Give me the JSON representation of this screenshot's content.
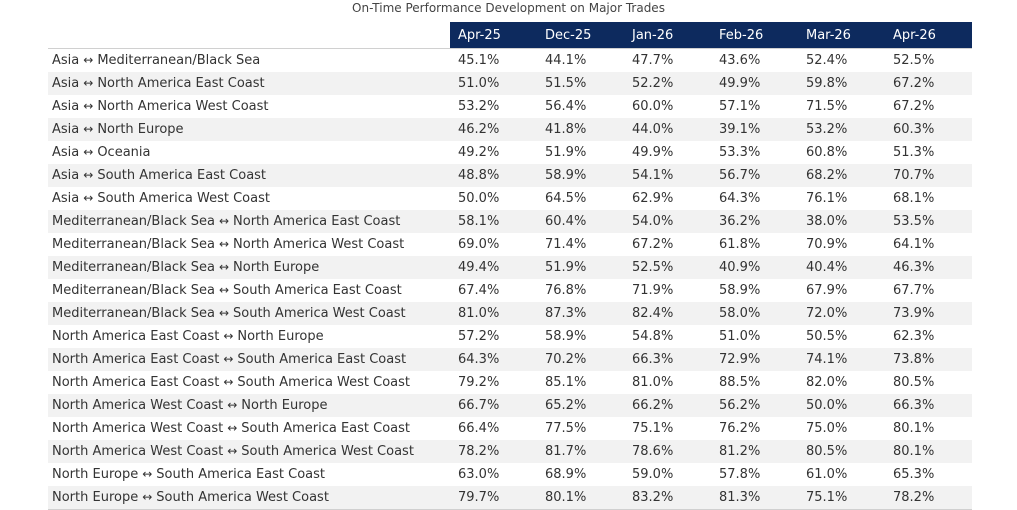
{
  "chart_data": {
    "type": "table",
    "title": "On-Time Performance Development on Major Trades",
    "columns": [
      "Apr-25",
      "Dec-25",
      "Jan-26",
      "Feb-26",
      "Mar-26",
      "Apr-26"
    ],
    "rows": [
      {
        "from": "Asia",
        "to": "Mediterranean/Black Sea",
        "values": [
          "45.1%",
          "44.1%",
          "47.7%",
          "43.6%",
          "52.4%",
          "52.5%"
        ]
      },
      {
        "from": "Asia",
        "to": "North America East Coast",
        "values": [
          "51.0%",
          "51.5%",
          "52.2%",
          "49.9%",
          "59.8%",
          "67.2%"
        ]
      },
      {
        "from": "Asia",
        "to": "North America West Coast",
        "values": [
          "53.2%",
          "56.4%",
          "60.0%",
          "57.1%",
          "71.5%",
          "67.2%"
        ]
      },
      {
        "from": "Asia",
        "to": "North Europe",
        "values": [
          "46.2%",
          "41.8%",
          "44.0%",
          "39.1%",
          "53.2%",
          "60.3%"
        ]
      },
      {
        "from": "Asia",
        "to": "Oceania",
        "values": [
          "49.2%",
          "51.9%",
          "49.9%",
          "53.3%",
          "60.8%",
          "51.3%"
        ]
      },
      {
        "from": "Asia",
        "to": "South America East Coast",
        "values": [
          "48.8%",
          "58.9%",
          "54.1%",
          "56.7%",
          "68.2%",
          "70.7%"
        ]
      },
      {
        "from": "Asia",
        "to": "South America West Coast",
        "values": [
          "50.0%",
          "64.5%",
          "62.9%",
          "64.3%",
          "76.1%",
          "68.1%"
        ]
      },
      {
        "from": "Mediterranean/Black Sea",
        "to": "North America East Coast",
        "values": [
          "58.1%",
          "60.4%",
          "54.0%",
          "36.2%",
          "38.0%",
          "53.5%"
        ]
      },
      {
        "from": "Mediterranean/Black Sea",
        "to": "North America West Coast",
        "values": [
          "69.0%",
          "71.4%",
          "67.2%",
          "61.8%",
          "70.9%",
          "64.1%"
        ]
      },
      {
        "from": "Mediterranean/Black Sea",
        "to": "North Europe",
        "values": [
          "49.4%",
          "51.9%",
          "52.5%",
          "40.9%",
          "40.4%",
          "46.3%"
        ]
      },
      {
        "from": "Mediterranean/Black Sea",
        "to": "South America East Coast",
        "values": [
          "67.4%",
          "76.8%",
          "71.9%",
          "58.9%",
          "67.9%",
          "67.7%"
        ]
      },
      {
        "from": "Mediterranean/Black Sea",
        "to": "South America West Coast",
        "values": [
          "81.0%",
          "87.3%",
          "82.4%",
          "58.0%",
          "72.0%",
          "73.9%"
        ]
      },
      {
        "from": "North America East Coast",
        "to": "North Europe",
        "values": [
          "57.2%",
          "58.9%",
          "54.8%",
          "51.0%",
          "50.5%",
          "62.3%"
        ]
      },
      {
        "from": "North America East Coast",
        "to": "South America East Coast",
        "values": [
          "64.3%",
          "70.2%",
          "66.3%",
          "72.9%",
          "74.1%",
          "73.8%"
        ]
      },
      {
        "from": "North America East Coast",
        "to": "South America West Coast",
        "values": [
          "79.2%",
          "85.1%",
          "81.0%",
          "88.5%",
          "82.0%",
          "80.5%"
        ]
      },
      {
        "from": "North America West Coast",
        "to": "North Europe",
        "values": [
          "66.7%",
          "65.2%",
          "66.2%",
          "56.2%",
          "50.0%",
          "66.3%"
        ]
      },
      {
        "from": "North America West Coast",
        "to": "South America East Coast",
        "values": [
          "66.4%",
          "77.5%",
          "75.1%",
          "76.2%",
          "75.0%",
          "80.1%"
        ]
      },
      {
        "from": "North America West Coast",
        "to": "South America West Coast",
        "values": [
          "78.2%",
          "81.7%",
          "78.6%",
          "81.2%",
          "80.5%",
          "80.1%"
        ]
      },
      {
        "from": "North Europe",
        "to": "South America East Coast",
        "values": [
          "63.0%",
          "68.9%",
          "59.0%",
          "57.8%",
          "61.0%",
          "65.3%"
        ]
      },
      {
        "from": "North Europe",
        "to": "South America West Coast",
        "values": [
          "79.7%",
          "80.1%",
          "83.2%",
          "81.3%",
          "75.1%",
          "78.2%"
        ]
      }
    ],
    "arrow_glyph": "↔",
    "header_color": "#0d2a5e",
    "stripe_color": "#f2f2f2"
  }
}
